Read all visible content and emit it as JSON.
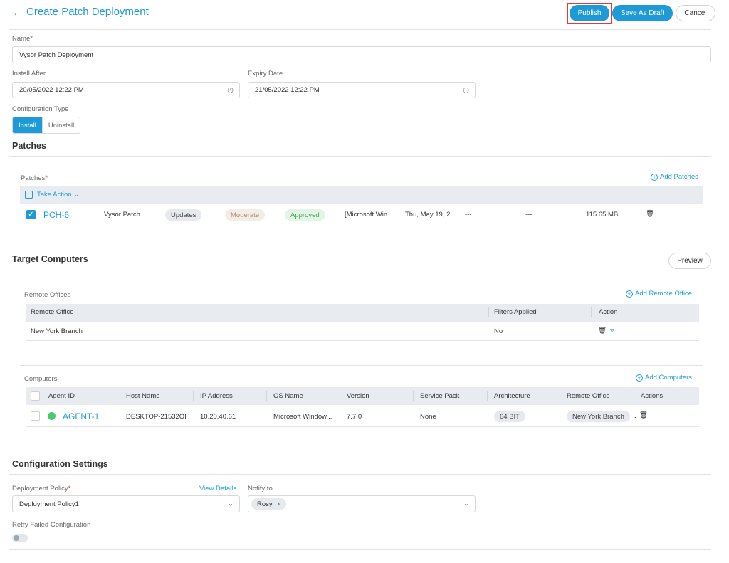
{
  "header": {
    "back_icon": "arrow-left-icon",
    "title": "Create Patch Deployment"
  },
  "actions": {
    "publish": "Publish",
    "save_draft": "Save As Draft",
    "cancel": "Cancel"
  },
  "form": {
    "name_label": "Name",
    "name_value": "Vysor Patch Deployment",
    "install_after_label": "Install After",
    "install_after_value": "20/05/2022 12:22 PM",
    "expiry_date_label": "Expiry Date",
    "expiry_date_value": "21/05/2022 12:22 PM",
    "config_type_label": "Configuration Type",
    "config_type_options": [
      "Install",
      "Uninstall"
    ],
    "config_type_selected": "Install"
  },
  "patches": {
    "section_title": "Patches",
    "label": "Patches",
    "add_link": "Add Patches",
    "take_action": "Take Action",
    "rows": [
      {
        "id": "PCH-6",
        "name": "Vysor Patch",
        "category": "Updates",
        "severity": "Moderate",
        "status": "Approved",
        "platform": "[Microsoft Win...",
        "date": "Thu, May 19, 2...",
        "col8": "---",
        "col9": "---",
        "size": "115.65 MB"
      }
    ]
  },
  "target": {
    "section_title": "Target Computers",
    "preview": "Preview",
    "remote_offices_label": "Remote Offices",
    "add_remote_office": "Add Remote Office",
    "ro_headers": {
      "name": "Remote Office",
      "filters": "Filters Applied",
      "action": "Action"
    },
    "ro_rows": [
      {
        "name": "New York Branch",
        "filters": "No"
      }
    ],
    "computers_label": "Computers",
    "add_computers": "Add Computers",
    "comp_headers": {
      "agent": "Agent ID",
      "host": "Host Name",
      "ip": "IP Address",
      "os": "OS Name",
      "version": "Version",
      "sp": "Service Pack",
      "arch": "Architecture",
      "ro": "Remote Office",
      "actions": "Actions"
    },
    "comp_rows": [
      {
        "agent": "AGENT-1",
        "host": "DESKTOP-21532OI",
        "ip": "10.20.40.61",
        "os": "Microsoft Window...",
        "version": "7.7.0",
        "sp": "None",
        "arch": "64 BIT",
        "ro": "New York Branch",
        "ro_more": "."
      }
    ]
  },
  "config": {
    "section_title": "Configuration Settings",
    "policy_label": "Deployment Policy",
    "view_details": "View Details",
    "policy_value": "Deployment Policy1",
    "notify_label": "Notify to",
    "notify_tags": [
      "Rosy"
    ],
    "retry_label": "Retry Failed Configuration",
    "retry_enabled": false
  },
  "colors": {
    "accent": "#1e9bd7",
    "danger": "#e53935",
    "online": "#4cc96a"
  }
}
